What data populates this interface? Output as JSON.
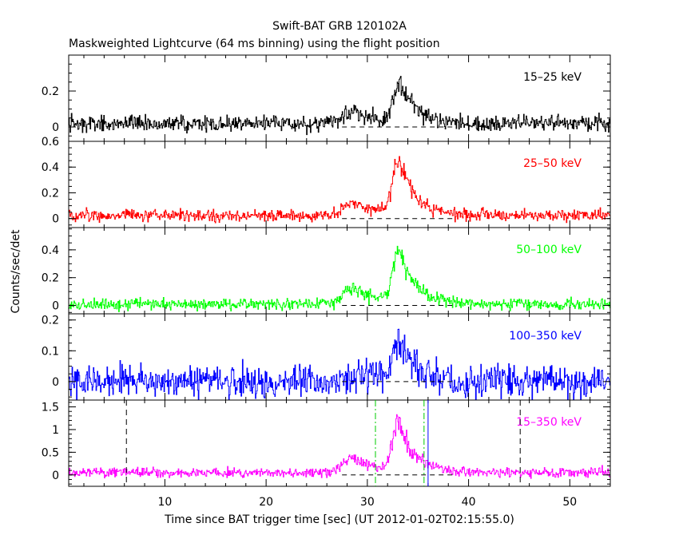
{
  "chart_data": {
    "type": "line",
    "title": "Swift-BAT GRB 120102A",
    "subtitle": "Maskweighted Lightcurve (64 ms binning) using the flight position",
    "xlabel": "Time since BAT trigger time [sec] (UT 2012-01-02T02:15:55.0)",
    "ylabel": "Counts/sec/det",
    "xlim": [
      0.5,
      54.0
    ],
    "x_ticks": [
      10,
      20,
      30,
      40,
      50
    ],
    "bin_sec": 0.064,
    "panels": [
      {
        "name": "15-25",
        "label": "15–25 keV",
        "color": "#000000",
        "ylim": [
          -0.08,
          0.4
        ],
        "yticks": [
          {
            "v": 0,
            "t": "0"
          },
          {
            "v": 0.2,
            "t": "0.2"
          }
        ],
        "minor_step": 0.05,
        "baseline": 0.02,
        "noise": 0.022,
        "pulses": [
          {
            "t": 28.5,
            "amp": 0.06,
            "rise": 1.0,
            "decay": 2.5
          },
          {
            "t": 33.2,
            "amp": 0.22,
            "rise": 0.6,
            "decay": 1.5
          }
        ]
      },
      {
        "name": "25-50",
        "label": "25–50 keV",
        "color": "#ff0000",
        "ylim": [
          -0.07,
          0.6
        ],
        "yticks": [
          {
            "v": 0,
            "t": "0"
          },
          {
            "v": 0.2,
            "t": "0.2"
          },
          {
            "v": 0.4,
            "t": "0.4"
          },
          {
            "v": 0.6,
            "t": "0.6"
          }
        ],
        "minor_step": 0.05,
        "baseline": 0.025,
        "noise": 0.022,
        "pulses": [
          {
            "t": 28.6,
            "amp": 0.1,
            "rise": 1.0,
            "decay": 2.5
          },
          {
            "t": 33.1,
            "amp": 0.42,
            "rise": 0.6,
            "decay": 1.6
          }
        ]
      },
      {
        "name": "50-100",
        "label": "50–100 keV",
        "color": "#00ff00",
        "ylim": [
          -0.06,
          0.56
        ],
        "yticks": [
          {
            "v": 0,
            "t": "0"
          },
          {
            "v": 0.2,
            "t": "0.2"
          },
          {
            "v": 0.4,
            "t": "0.4"
          }
        ],
        "minor_step": 0.05,
        "baseline": 0.01,
        "noise": 0.02,
        "pulses": [
          {
            "t": 28.6,
            "amp": 0.11,
            "rise": 1.0,
            "decay": 2.5
          },
          {
            "t": 33.1,
            "amp": 0.38,
            "rise": 0.6,
            "decay": 1.6
          }
        ]
      },
      {
        "name": "100-350",
        "label": "100–350 keV",
        "color": "#0000ff",
        "ylim": [
          -0.06,
          0.22
        ],
        "yticks": [
          {
            "v": 0,
            "t": "0"
          },
          {
            "v": 0.1,
            "t": "0.1"
          },
          {
            "v": 0.2,
            "t": "0.2"
          }
        ],
        "minor_step": 0.025,
        "baseline": 0.0,
        "noise": 0.025,
        "pulses": [
          {
            "t": 29.5,
            "amp": 0.03,
            "rise": 1.2,
            "decay": 2.5
          },
          {
            "t": 33.1,
            "amp": 0.13,
            "rise": 0.6,
            "decay": 1.6
          }
        ]
      },
      {
        "name": "15-350",
        "label": "15–350 keV",
        "color": "#ff00ff",
        "ylim": [
          -0.25,
          1.65
        ],
        "yticks": [
          {
            "v": 0,
            "t": "0"
          },
          {
            "v": 0.5,
            "t": "0.5"
          },
          {
            "v": 1,
            "t": "1"
          },
          {
            "v": 1.5,
            "t": "1.5"
          }
        ],
        "minor_step": 0.1,
        "baseline": 0.05,
        "noise": 0.05,
        "pulses": [
          {
            "t": 28.6,
            "amp": 0.3,
            "rise": 1.0,
            "decay": 2.5
          },
          {
            "t": 33.1,
            "amp": 1.1,
            "rise": 0.6,
            "decay": 1.6
          }
        ]
      }
    ],
    "markers": [
      {
        "name": "marker-t100-start",
        "x": 6.2,
        "style": "dash",
        "color": "#000000"
      },
      {
        "name": "marker-t100-end",
        "x": 45.1,
        "style": "dash",
        "color": "#000000"
      },
      {
        "name": "marker-t90-start",
        "x": 30.8,
        "style": "dashdot",
        "color": "#00cc00"
      },
      {
        "name": "marker-t90-end",
        "x": 35.6,
        "style": "dashdot",
        "color": "#00cc00"
      },
      {
        "name": "marker-trigger-window",
        "x": 36.0,
        "style": "solid",
        "color": "#0000ff"
      }
    ]
  }
}
